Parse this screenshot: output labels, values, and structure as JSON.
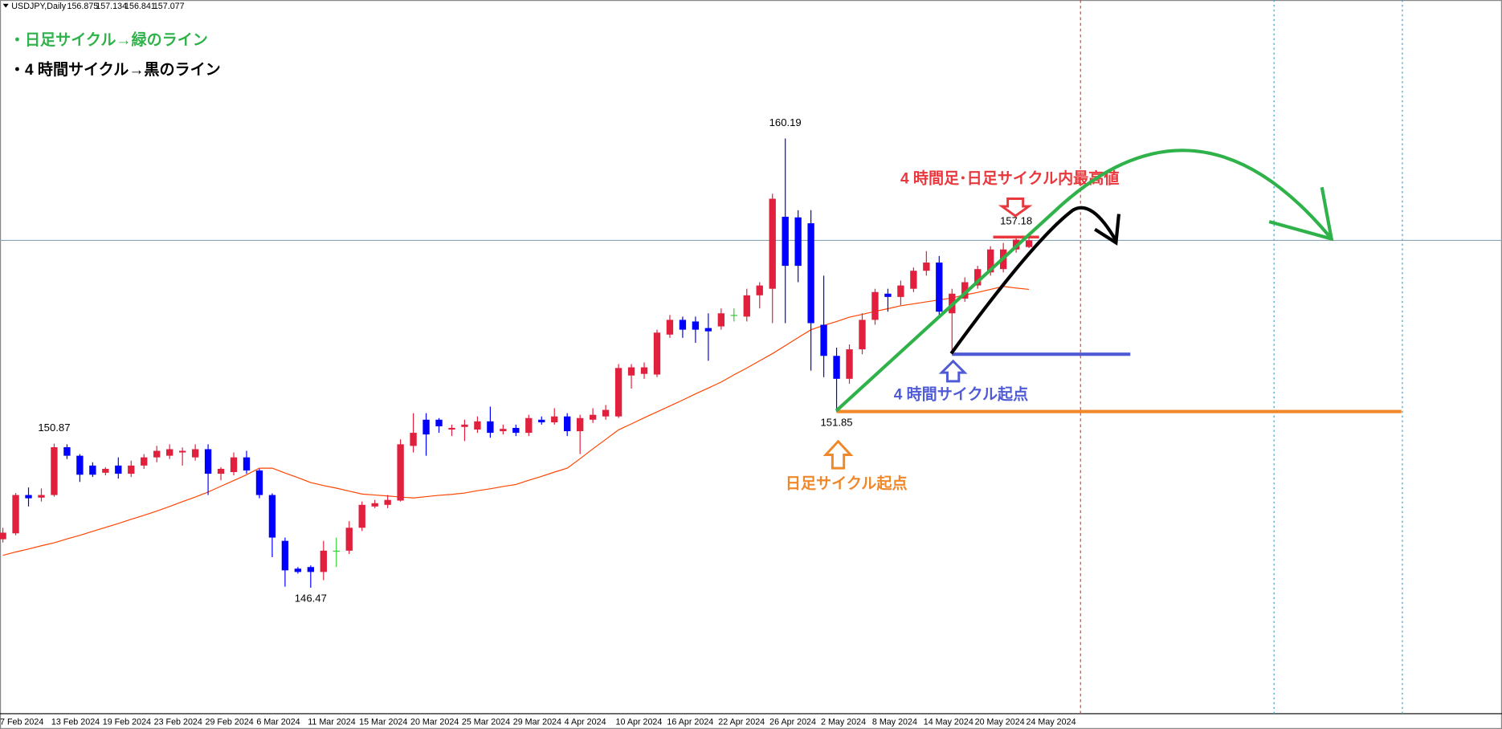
{
  "chart_data": {
    "type": "candlestick",
    "title": "USDJPY,Daily",
    "categories": [
      "7 Feb 2024",
      null,
      null,
      null,
      "13 Feb 2024",
      null,
      null,
      null,
      "19 Feb 2024",
      null,
      null,
      null,
      "23 Feb 2024",
      null,
      null,
      null,
      "29 Feb 2024",
      null,
      null,
      null,
      "6 Mar 2024",
      null,
      null,
      null,
      "11 Mar 2024",
      null,
      null,
      null,
      "15 Mar 2024",
      null,
      null,
      null,
      "20 Mar 2024",
      null,
      null,
      null,
      "25 Mar 2024",
      null,
      null,
      null,
      "29 Mar 2024",
      null,
      null,
      null,
      "4 Apr 2024",
      null,
      null,
      null,
      "10 Apr 2024",
      null,
      null,
      null,
      "16 Apr 2024",
      null,
      null,
      null,
      "22 Apr 2024",
      null,
      null,
      null,
      "26 Apr 2024",
      null,
      null,
      null,
      "2 May 2024",
      null,
      null,
      null,
      "8 May 2024",
      null,
      null,
      null,
      "14 May 2024",
      null,
      null,
      null,
      "20 May 2024",
      null,
      null,
      null,
      "24 May 2024"
    ],
    "open": [
      147.95,
      148.13,
      149.3,
      149.22,
      149.3,
      150.76,
      150.5,
      150.2,
      149.98,
      150.2,
      149.95,
      150.2,
      150.45,
      150.5,
      150.6,
      150.45,
      150.7,
      149.95,
      150.0,
      150.45,
      150.05,
      149.3,
      147.9,
      147.05,
      147.1,
      146.95,
      147.6,
      147.6,
      148.3,
      148.95,
      149.0,
      149.13,
      150.8,
      151.6,
      151.6,
      151.3,
      151.38,
      151.3,
      151.55,
      151.25,
      151.35,
      151.2,
      151.6,
      151.52,
      151.7,
      151.25,
      151.6,
      151.7,
      151.7,
      152.95,
      153.0,
      152.98,
      154.2,
      154.65,
      154.6,
      154.4,
      154.45,
      154.8,
      154.75,
      155.4,
      155.6,
      157.8,
      157.78,
      157.6,
      154.5,
      153.55,
      152.85,
      153.75,
      154.65,
      155.45,
      155.35,
      155.6,
      156.15,
      156.4,
      154.85,
      155.3,
      155.7,
      156.1,
      156.2,
      156.8,
      156.875
    ],
    "high": [
      148.3,
      149.36,
      149.53,
      149.5,
      150.87,
      150.85,
      150.55,
      150.3,
      150.15,
      150.45,
      150.35,
      150.55,
      150.8,
      150.85,
      150.75,
      150.85,
      150.85,
      150.15,
      150.6,
      150.65,
      150.1,
      149.35,
      148.0,
      147.1,
      147.15,
      147.9,
      148.0,
      148.5,
      149.1,
      149.15,
      149.3,
      151.0,
      151.8,
      151.8,
      151.65,
      151.45,
      151.6,
      151.7,
      152.0,
      151.45,
      151.45,
      151.75,
      151.7,
      151.95,
      151.8,
      151.75,
      151.95,
      152.05,
      153.3,
      153.3,
      153.35,
      154.35,
      154.8,
      154.75,
      154.75,
      154.85,
      155.0,
      155.0,
      155.6,
      155.8,
      158.5,
      160.19,
      158.0,
      158.0,
      156.0,
      153.8,
      153.9,
      154.85,
      155.6,
      155.6,
      155.85,
      156.25,
      156.75,
      156.6,
      155.6,
      155.95,
      156.3,
      156.9,
      157.0,
      157.18,
      157.134
    ],
    "low": [
      147.85,
      148.07,
      148.95,
      149.1,
      149.25,
      150.4,
      149.7,
      149.85,
      149.9,
      149.8,
      149.85,
      150.1,
      150.3,
      150.4,
      150.2,
      150.35,
      149.3,
      149.75,
      149.9,
      149.95,
      149.2,
      147.4,
      146.5,
      146.9,
      146.47,
      146.7,
      147.1,
      147.5,
      148.2,
      148.9,
      148.9,
      149.1,
      150.6,
      150.5,
      151.2,
      151.1,
      150.95,
      151.2,
      151.05,
      151.15,
      151.1,
      151.1,
      151.45,
      151.45,
      151.1,
      150.55,
      151.5,
      151.6,
      151.65,
      152.55,
      152.85,
      152.9,
      154.1,
      154.1,
      153.95,
      153.4,
      154.35,
      154.6,
      154.6,
      155.0,
      154.55,
      154.55,
      155.8,
      153.1,
      152.9,
      151.85,
      152.7,
      153.6,
      154.5,
      154.9,
      155.1,
      155.5,
      156.0,
      154.7,
      153.6,
      155.2,
      155.6,
      156.0,
      156.1,
      156.7,
      156.841
    ],
    "close": [
      148.15,
      149.3,
      149.2,
      149.3,
      150.76,
      150.5,
      149.92,
      149.92,
      150.1,
      149.95,
      150.2,
      150.45,
      150.65,
      150.7,
      150.65,
      150.7,
      149.95,
      150.1,
      150.45,
      150.05,
      149.3,
      148.0,
      147.0,
      146.95,
      146.95,
      147.6,
      147.6,
      148.3,
      149.0,
      149.05,
      149.15,
      150.85,
      151.2,
      151.15,
      151.4,
      151.35,
      151.45,
      151.55,
      151.2,
      151.32,
      151.2,
      151.65,
      151.52,
      151.7,
      151.25,
      151.65,
      151.75,
      151.9,
      153.18,
      153.2,
      153.2,
      154.26,
      154.65,
      154.35,
      154.35,
      154.3,
      154.85,
      154.8,
      155.4,
      155.7,
      158.35,
      156.3,
      156.3,
      154.55,
      153.55,
      152.85,
      153.75,
      154.65,
      155.5,
      155.35,
      155.7,
      156.15,
      156.4,
      154.9,
      155.45,
      155.8,
      156.2,
      156.8,
      156.8,
      157.1,
      157.077
    ],
    "ma": [
      147.46,
      147.56,
      147.65,
      147.75,
      147.84,
      147.96,
      148.07,
      148.19,
      148.31,
      148.43,
      148.56,
      148.68,
      148.81,
      148.95,
      149.1,
      149.24,
      149.39,
      149.57,
      149.74,
      149.92,
      150.12,
      150.12,
      149.97,
      149.83,
      149.68,
      149.59,
      149.51,
      149.42,
      149.33,
      149.3,
      149.27,
      149.24,
      149.21,
      149.25,
      149.29,
      149.32,
      149.36,
      149.43,
      149.49,
      149.56,
      149.62,
      149.75,
      149.87,
      150.0,
      150.12,
      150.41,
      150.71,
      151.0,
      151.29,
      151.47,
      151.66,
      151.84,
      152.02,
      152.2,
      152.39,
      152.57,
      152.75,
      152.97,
      153.18,
      153.4,
      153.62,
      153.86,
      154.11,
      154.35,
      154.48,
      154.6,
      154.73,
      154.82,
      154.91,
      154.99,
      155.08,
      155.14,
      155.2,
      155.26,
      155.32,
      155.41,
      155.49,
      155.58,
      155.67,
      155.62,
      155.58
    ],
    "up_color": "#e0203c",
    "down_color": "#0000ff",
    "doji_color": "#32cd32",
    "ma_color": "#ff4500",
    "price_labels": [
      160.19,
      150.87,
      146.47,
      151.85,
      157.18
    ],
    "ylim": [
      142.62,
      164.42
    ],
    "notes": {
      "daily": "・日足サイクル→緑のライン",
      "h4": "・4 時間サイクル→黒のライン",
      "high": "4 時間足･日足サイクル内最高値",
      "h4_start": "4 時間サイクル起点",
      "daily_start": "日足サイクル起点"
    }
  }
}
